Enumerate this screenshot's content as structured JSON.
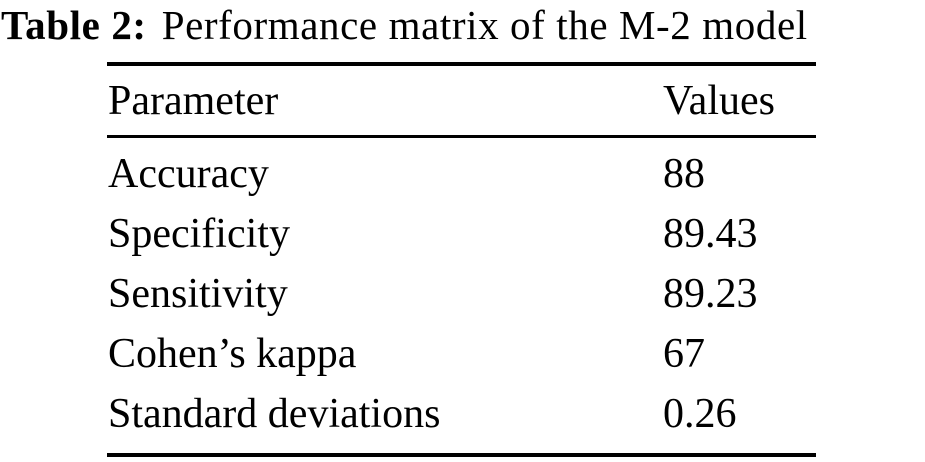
{
  "caption": {
    "label": "Table 2:",
    "text": "Performance matrix of the M-2 model"
  },
  "table": {
    "columns": {
      "parameter": "Parameter",
      "values": "Values"
    },
    "rows": [
      {
        "parameter": "Accuracy",
        "value": "88"
      },
      {
        "parameter": "Specificity",
        "value": "89.43"
      },
      {
        "parameter": "Sensitivity",
        "value": "89.23"
      },
      {
        "parameter": "Cohen’s kappa",
        "value": "67"
      },
      {
        "parameter": "Standard deviations",
        "value": "0.26"
      }
    ]
  },
  "colors": {
    "text": "#000000",
    "background": "#ffffff",
    "rule": "#000000"
  }
}
